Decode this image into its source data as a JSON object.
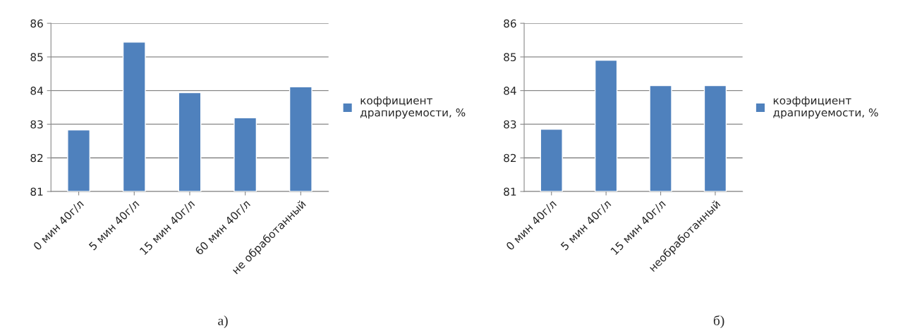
{
  "chart_data": [
    {
      "type": "bar",
      "categories": [
        "0 мин 40г/л",
        "5 мин 40г/л",
        "15 мин 40г/л",
        "60 мин 40г/л",
        "не обработанный"
      ],
      "series": [
        {
          "name": "коффициент драпируемости, %",
          "color": "#4f81bd",
          "values": [
            82.83,
            85.44,
            83.94,
            83.19,
            84.11
          ]
        }
      ],
      "ylim": [
        81,
        86
      ],
      "yticks": [
        81,
        82,
        83,
        84,
        85,
        86
      ],
      "grid": "y",
      "legend": "right",
      "annotations": [
        "а)"
      ]
    },
    {
      "type": "bar",
      "categories": [
        "0 мин 40г/л",
        "5 мин 40г/л",
        "15 мин 40г/л",
        "необработанный"
      ],
      "series": [
        {
          "name": "коэффициент драпируемости, %",
          "color": "#4f81bd",
          "values": [
            82.85,
            84.9,
            84.15,
            84.15
          ]
        }
      ],
      "ylim": [
        81,
        86
      ],
      "yticks": [
        81,
        82,
        83,
        84,
        85,
        86
      ],
      "grid": "y",
      "legend": "right",
      "annotations": [
        "б)"
      ]
    }
  ]
}
